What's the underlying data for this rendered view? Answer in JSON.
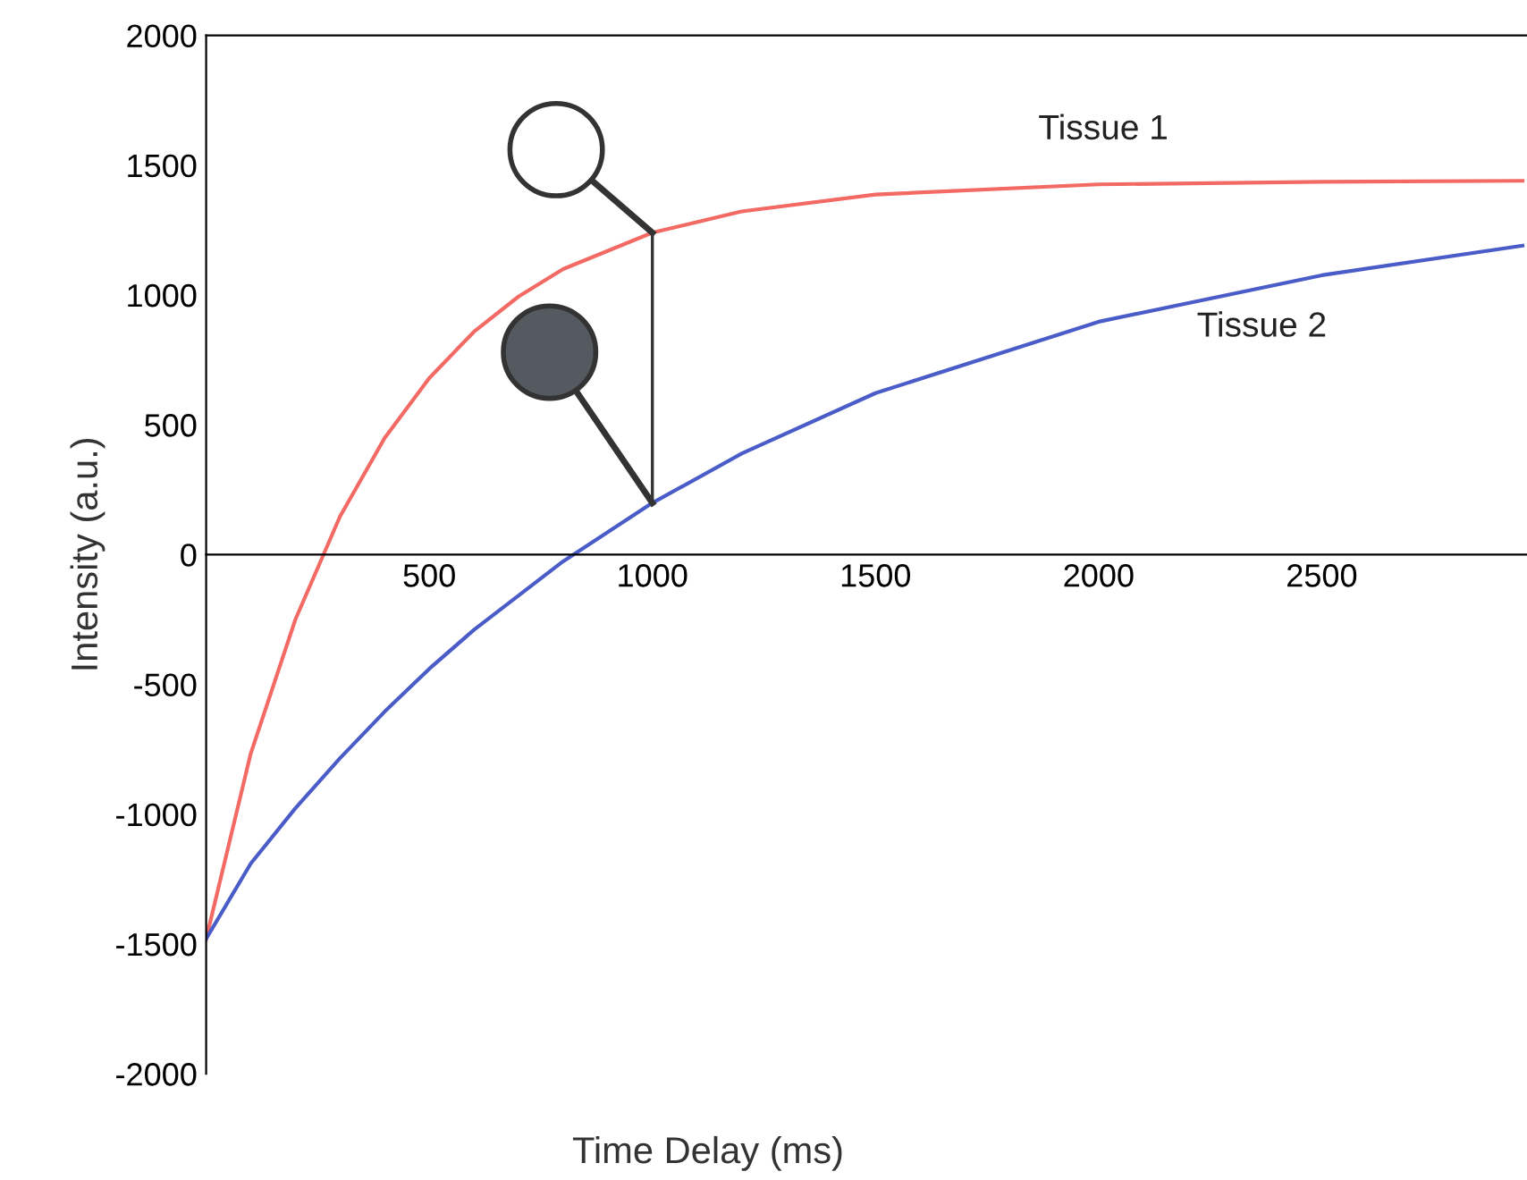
{
  "chart_data": {
    "type": "line",
    "xlabel": "Time Delay (ms)",
    "ylabel": "Intensity (a.u.)",
    "xlim": [
      0,
      2960
    ],
    "ylim": [
      -2000,
      2000
    ],
    "xticks": [
      500,
      1000,
      1500,
      2000,
      2500
    ],
    "yticks": [
      -2000,
      -1500,
      -1000,
      -500,
      0,
      500,
      1000,
      1500,
      2000
    ],
    "grid": false,
    "legend": false,
    "marker": "none",
    "line_style": "solid",
    "ref_lines": [
      {
        "axis": "x",
        "value": 1000,
        "color": "#333333",
        "line_style": "solid"
      }
    ],
    "series": [
      {
        "name": "Tissue 1",
        "color": "#f26a63",
        "x": [
          0,
          100,
          200,
          300,
          400,
          500,
          600,
          700,
          800,
          1000,
          1200,
          1500,
          2000,
          2500,
          2950
        ],
        "values": [
          -1480,
          -766,
          -250,
          147,
          449,
          680,
          858,
          994,
          1100,
          1240,
          1322,
          1387,
          1426,
          1436,
          1440
        ]
      },
      {
        "name": "Tissue 2",
        "color": "#4a5cc8",
        "x": [
          0,
          100,
          200,
          300,
          400,
          500,
          600,
          800,
          1000,
          1200,
          1500,
          2000,
          2500,
          2950
        ],
        "values": [
          -1480,
          -1190,
          -977,
          -784,
          -605,
          -440,
          -290,
          -26,
          199,
          389,
          622,
          897,
          1076,
          1190
        ]
      }
    ]
  }
}
